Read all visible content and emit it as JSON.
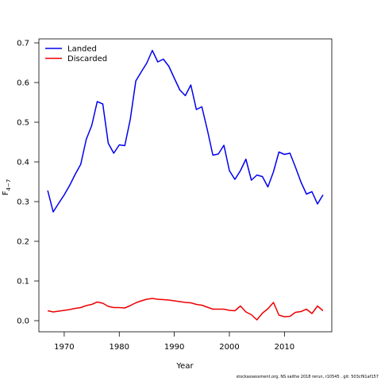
{
  "chart_data": {
    "type": "line",
    "xlabel": "Year",
    "ylabel_main": "F",
    "ylabel_sub": "4−7",
    "xticks": [
      1970,
      1980,
      1990,
      2000,
      2010
    ],
    "xtick_labels": [
      "1970",
      "1980",
      "1990",
      "2000",
      "2010"
    ],
    "yticks": [
      0.0,
      0.1,
      0.2,
      0.3,
      0.4,
      0.5,
      0.6,
      0.7
    ],
    "ytick_labels": [
      "0.0",
      "0.1",
      "0.2",
      "0.3",
      "0.4",
      "0.5",
      "0.6",
      "0.7"
    ],
    "xlim": [
      1965.4,
      2018.6
    ],
    "ylim": [
      -0.028,
      0.71
    ],
    "legend_position": "top-left",
    "grid": false,
    "x": [
      1967,
      1968,
      1969,
      1970,
      1971,
      1972,
      1973,
      1974,
      1975,
      1976,
      1977,
      1978,
      1979,
      1980,
      1981,
      1982,
      1983,
      1984,
      1985,
      1986,
      1987,
      1988,
      1989,
      1990,
      1991,
      1992,
      1993,
      1994,
      1995,
      1996,
      1997,
      1998,
      1999,
      2000,
      2001,
      2002,
      2003,
      2004,
      2005,
      2006,
      2007,
      2008,
      2009,
      2010,
      2011,
      2012,
      2013,
      2014,
      2015,
      2016,
      2017
    ],
    "series": [
      {
        "name": "Landed",
        "color": "#0000ee",
        "values": [
          0.328,
          0.274,
          0.296,
          0.317,
          0.341,
          0.369,
          0.394,
          0.457,
          0.492,
          0.552,
          0.546,
          0.447,
          0.422,
          0.443,
          0.441,
          0.507,
          0.604,
          0.627,
          0.649,
          0.681,
          0.652,
          0.659,
          0.641,
          0.611,
          0.581,
          0.567,
          0.594,
          0.532,
          0.539,
          0.481,
          0.417,
          0.42,
          0.442,
          0.378,
          0.356,
          0.378,
          0.407,
          0.354,
          0.367,
          0.363,
          0.337,
          0.375,
          0.425,
          0.419,
          0.422,
          0.387,
          0.349,
          0.319,
          0.325,
          0.294,
          0.317
        ]
      },
      {
        "name": "Discarded",
        "color": "#ee0000",
        "values": [
          0.025,
          0.022,
          0.024,
          0.026,
          0.028,
          0.031,
          0.033,
          0.038,
          0.041,
          0.047,
          0.044,
          0.036,
          0.033,
          0.033,
          0.032,
          0.038,
          0.045,
          0.05,
          0.054,
          0.056,
          0.054,
          0.053,
          0.052,
          0.05,
          0.048,
          0.046,
          0.045,
          0.041,
          0.039,
          0.034,
          0.029,
          0.029,
          0.029,
          0.026,
          0.025,
          0.037,
          0.022,
          0.015,
          0.002,
          0.019,
          0.03,
          0.046,
          0.014,
          0.01,
          0.011,
          0.021,
          0.023,
          0.029,
          0.018,
          0.037,
          0.025
        ]
      }
    ]
  },
  "footer_note": "stockassessment.org, NS saithe 2018 rerun, r10545 , git: 503cf91af157"
}
